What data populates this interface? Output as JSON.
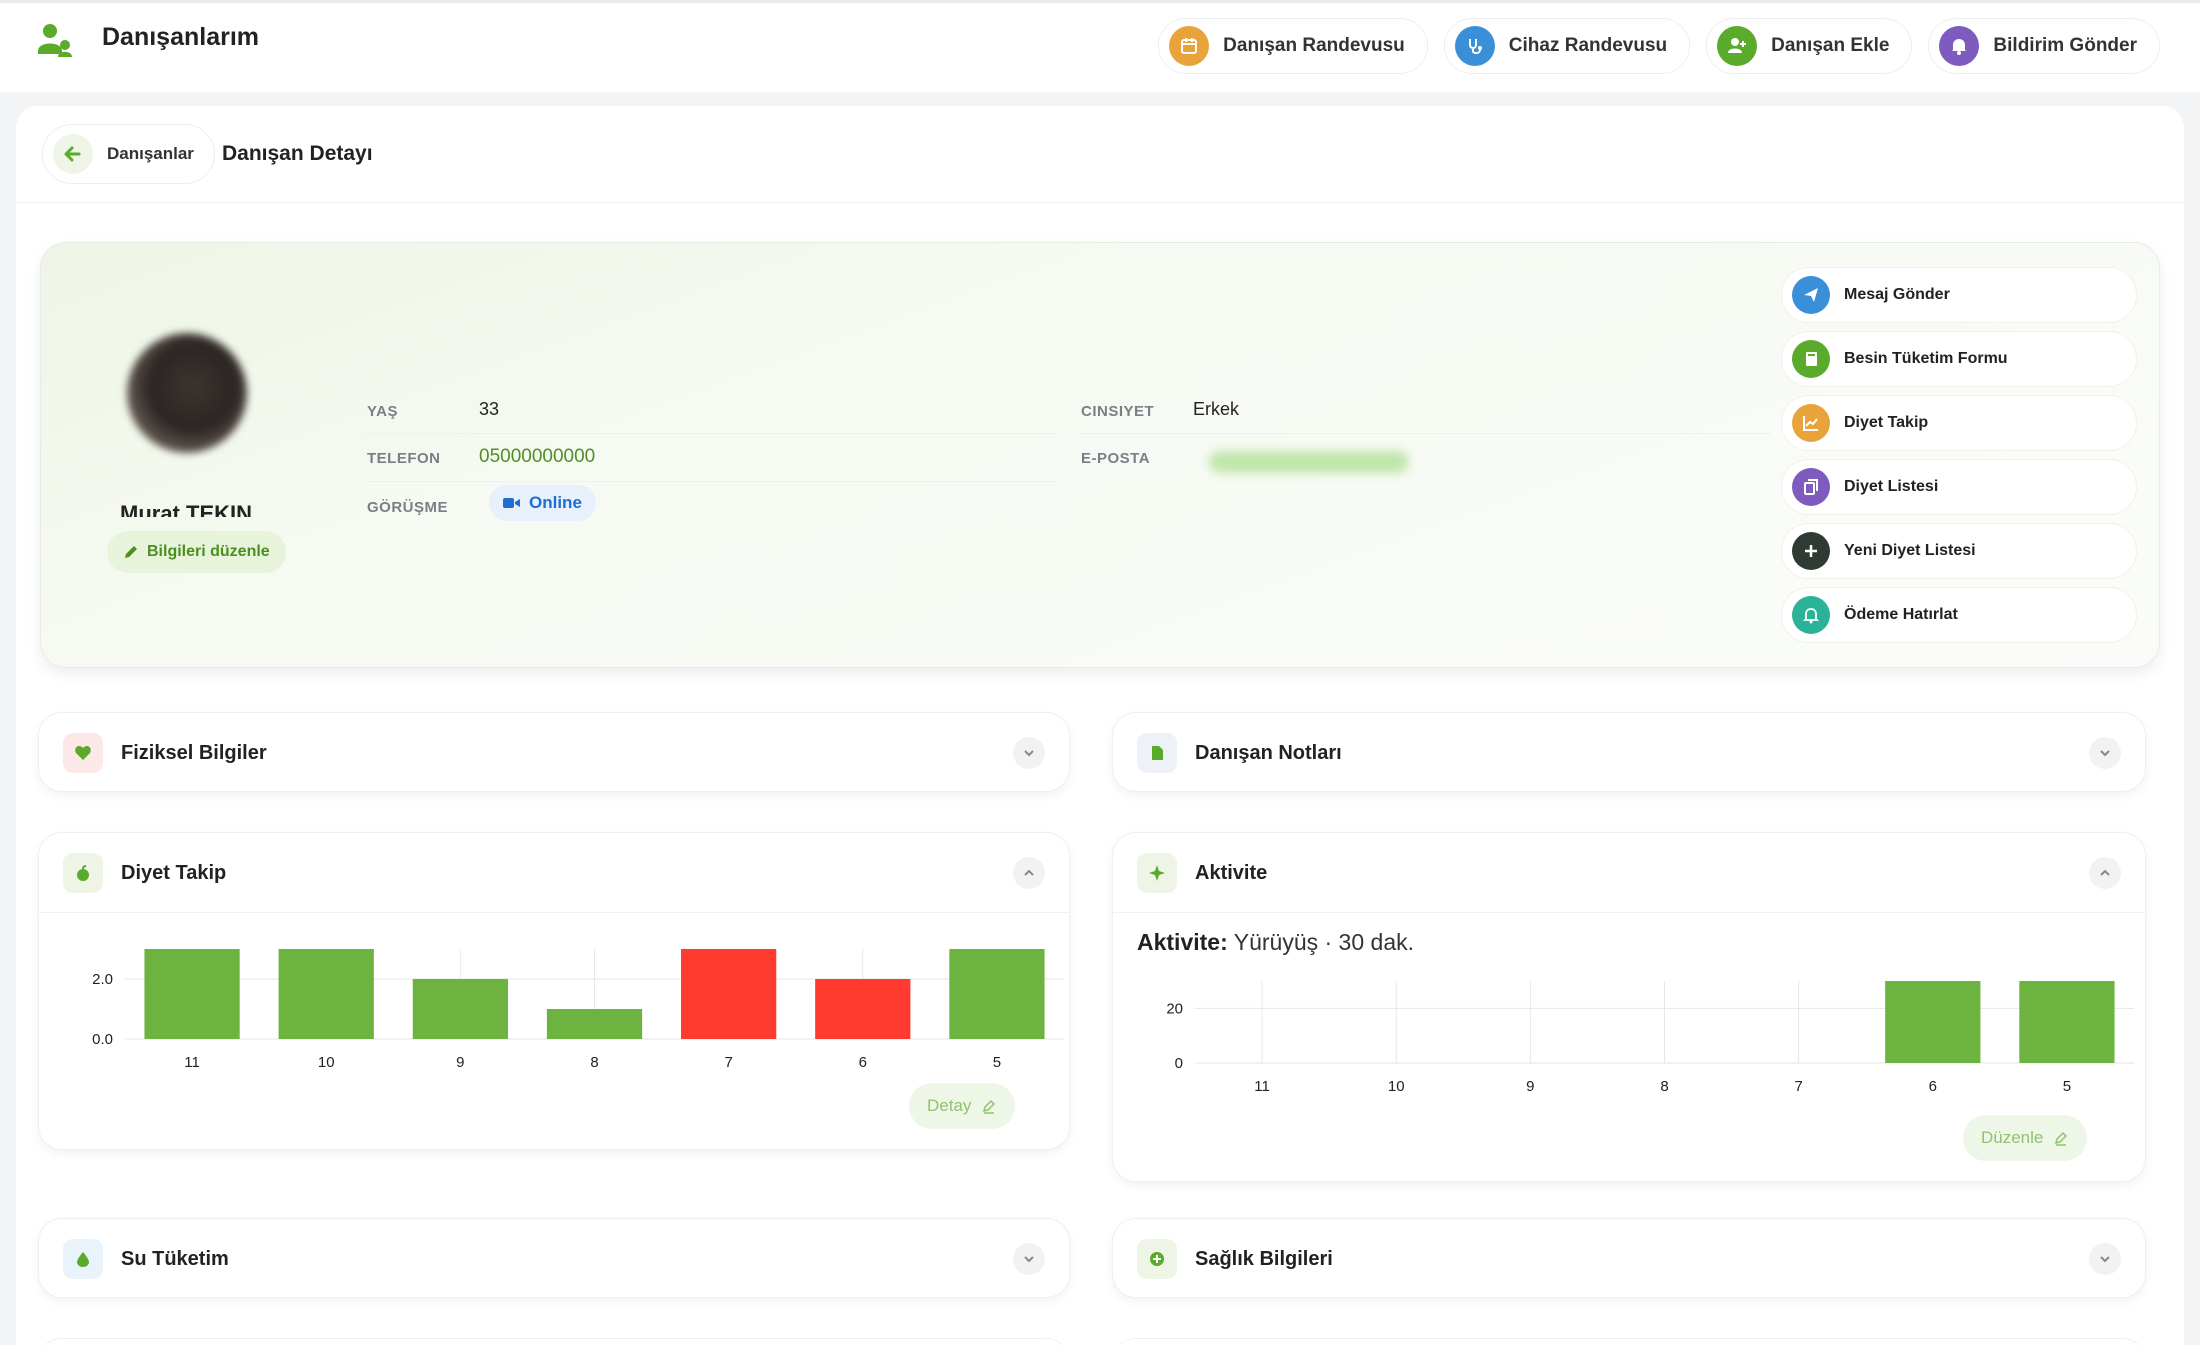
{
  "header": {
    "title": "Danışanlarım",
    "actions": [
      {
        "label": "Danışan Randevusu",
        "icon": "calendar-icon",
        "color": "#e8a33a"
      },
      {
        "label": "Cihaz Randevusu",
        "icon": "stethoscope-icon",
        "color": "#3a8fd9"
      },
      {
        "label": "Danışan Ekle",
        "icon": "user-plus-icon",
        "color": "#5aaa2b"
      },
      {
        "label": "Bildirim Gönder",
        "icon": "bell-icon",
        "color": "#7d5bbf"
      }
    ]
  },
  "breadcrumb": {
    "back_label": "Danışanlar",
    "page_title": "Danışan Detayı"
  },
  "profile": {
    "name": "Murat TEKIN",
    "edit_label": "Bilgileri düzenle",
    "age_label": "YAŞ",
    "age": "33",
    "phone_label": "TELEFON",
    "phone": "05000000000",
    "meeting_label": "GÖRÜŞME",
    "meeting": "Online",
    "gender_label": "CINSIYET",
    "gender": "Erkek",
    "email_label": "E-POSTA"
  },
  "side_actions": [
    {
      "label": "Mesaj Gönder",
      "icon": "send-icon",
      "color": "#3a8fd9"
    },
    {
      "label": "Besin Tüketim Formu",
      "icon": "book-icon",
      "color": "#5aaa2b"
    },
    {
      "label": "Diyet Takip",
      "icon": "chart-icon",
      "color": "#e8a33a"
    },
    {
      "label": "Diyet Listesi",
      "icon": "copy-icon",
      "color": "#7d5bbf"
    },
    {
      "label": "Yeni Diyet Listesi",
      "icon": "plus-icon",
      "color": "#2f3a33"
    },
    {
      "label": "Ödeme Hatırlat",
      "icon": "bell-icon",
      "color": "#2bb39a"
    }
  ],
  "panels": {
    "physical": {
      "title": "Fiziksel Bilgiler"
    },
    "notes": {
      "title": "Danışan Notları"
    },
    "diet": {
      "title": "Diyet Takip",
      "button": "Detay"
    },
    "activity": {
      "title": "Aktivite",
      "summary_label": "Aktivite:",
      "summary_value": "Yürüyüş · 30 dak.",
      "button": "Düzenle"
    },
    "water": {
      "title": "Su Tüketim"
    },
    "health": {
      "title": "Sağlık Bilgileri"
    }
  },
  "colors": {
    "accent": "#6db33f",
    "bad": "#ff3b30",
    "brand": "#5aaa2b"
  },
  "chart_data": [
    {
      "type": "bar",
      "categories": [
        "11",
        "10",
        "9",
        "8",
        "7",
        "6",
        "5"
      ],
      "values": [
        3,
        3,
        2,
        1,
        3,
        2,
        3
      ],
      "colors": [
        "#6db33f",
        "#6db33f",
        "#6db33f",
        "#6db33f",
        "#ff3b30",
        "#ff3b30",
        "#6db33f"
      ],
      "yticks": [
        "2.0",
        "0.0"
      ],
      "ylim": [
        0,
        3
      ]
    },
    {
      "type": "bar",
      "categories": [
        "11",
        "10",
        "9",
        "8",
        "7",
        "6",
        "5"
      ],
      "values": [
        0,
        0,
        0,
        0,
        0,
        30,
        30
      ],
      "yticks": [
        "20",
        "0"
      ],
      "ylim": [
        0,
        30
      ]
    }
  ]
}
